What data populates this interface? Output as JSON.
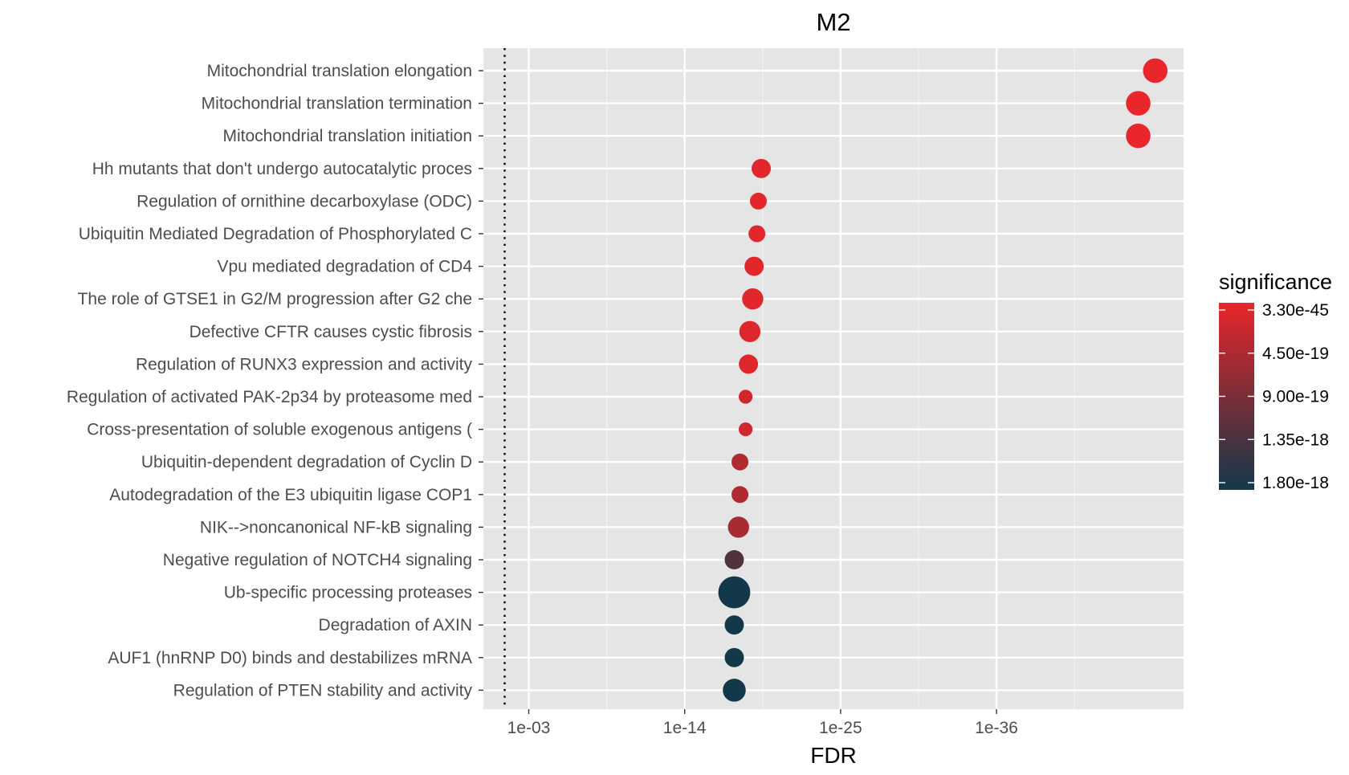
{
  "chart_data": {
    "type": "scatter",
    "title": "M2",
    "xlabel": "FDR",
    "ylabel": "",
    "x_scale": "log10-reversed",
    "x_ticks": [
      "1e-03",
      "1e-14",
      "1e-25",
      "1e-36"
    ],
    "x_tick_exponents": [
      3,
      14,
      25,
      36
    ],
    "x_range_exponent": [
      -0.2,
      49.2
    ],
    "threshold_line": {
      "fdr": 0.05,
      "style": "dotted"
    },
    "grid": true,
    "legend": {
      "title": "significance",
      "position": "right",
      "labels": [
        "3.30e-45",
        "4.50e-19",
        "9.00e-19",
        "1.35e-18",
        "1.80e-18"
      ],
      "color_high": "#e8262b",
      "color_low": "#13384a"
    },
    "categories": [
      "Mitochondrial translation elongation",
      "Mitochondrial translation termination",
      "Mitochondrial translation initiation",
      "Hh mutants that don't undergo autocatalytic proces",
      "Regulation of ornithine decarboxylase (ODC)",
      "Ubiquitin Mediated Degradation of Phosphorylated C",
      "Vpu mediated degradation of CD4",
      "The role of GTSE1 in G2/M progression after G2 che",
      "Defective CFTR causes cystic fibrosis",
      "Regulation of RUNX3 expression and activity",
      "Regulation of activated PAK-2p34 by proteasome med",
      "Cross-presentation of soluble exogenous antigens (",
      "Ubiquitin-dependent degradation of Cyclin D",
      "Autodegradation of the E3 ubiquitin ligase COP1",
      "NIK-->noncanonical NF-kB signaling",
      "Negative regulation of NOTCH4 signaling",
      "Ub-specific processing proteases",
      "Degradation of AXIN",
      "AUF1 (hnRNP D0) binds and destabilizes mRNA",
      "Regulation of PTEN stability and activity"
    ],
    "x": [
      "1e-47",
      "1e-46",
      "1e-46",
      "1e-19",
      "1e-19",
      "1e-19",
      "1e-19",
      "1e-19",
      "1e-18",
      "1e-18",
      "1e-18",
      "1e-18",
      "1e-18",
      "1e-18",
      "1e-18",
      "1e-17",
      "1e-17",
      "1e-17",
      "1e-17",
      "1e-17"
    ],
    "x_exponent": [
      47.2,
      46.0,
      46.0,
      19.4,
      19.2,
      19.1,
      18.9,
      18.8,
      18.6,
      18.5,
      18.3,
      18.3,
      17.9,
      17.9,
      17.8,
      17.5,
      17.5,
      17.5,
      17.5,
      17.5
    ],
    "significance": [
      3.3e-45,
      3.3e-45,
      3.3e-45,
      1e-20,
      1e-20,
      1e-20,
      1e-20,
      1e-20,
      5e-20,
      5e-20,
      1.5e-19,
      1.5e-19,
      4.5e-19,
      4.5e-19,
      5e-19,
      1.35e-18,
      1.8e-18,
      1.8e-18,
      1.8e-18,
      1.8e-18
    ],
    "color_level": [
      0.0,
      0.0,
      0.0,
      0.03,
      0.03,
      0.03,
      0.03,
      0.03,
      0.05,
      0.05,
      0.12,
      0.12,
      0.25,
      0.25,
      0.3,
      0.7,
      1.0,
      1.0,
      1.0,
      1.0
    ],
    "size": [
      6,
      6,
      6,
      3,
      2,
      2,
      3,
      4,
      4,
      3,
      1,
      1,
      2,
      2,
      4,
      3,
      12,
      3,
      3,
      5
    ]
  }
}
